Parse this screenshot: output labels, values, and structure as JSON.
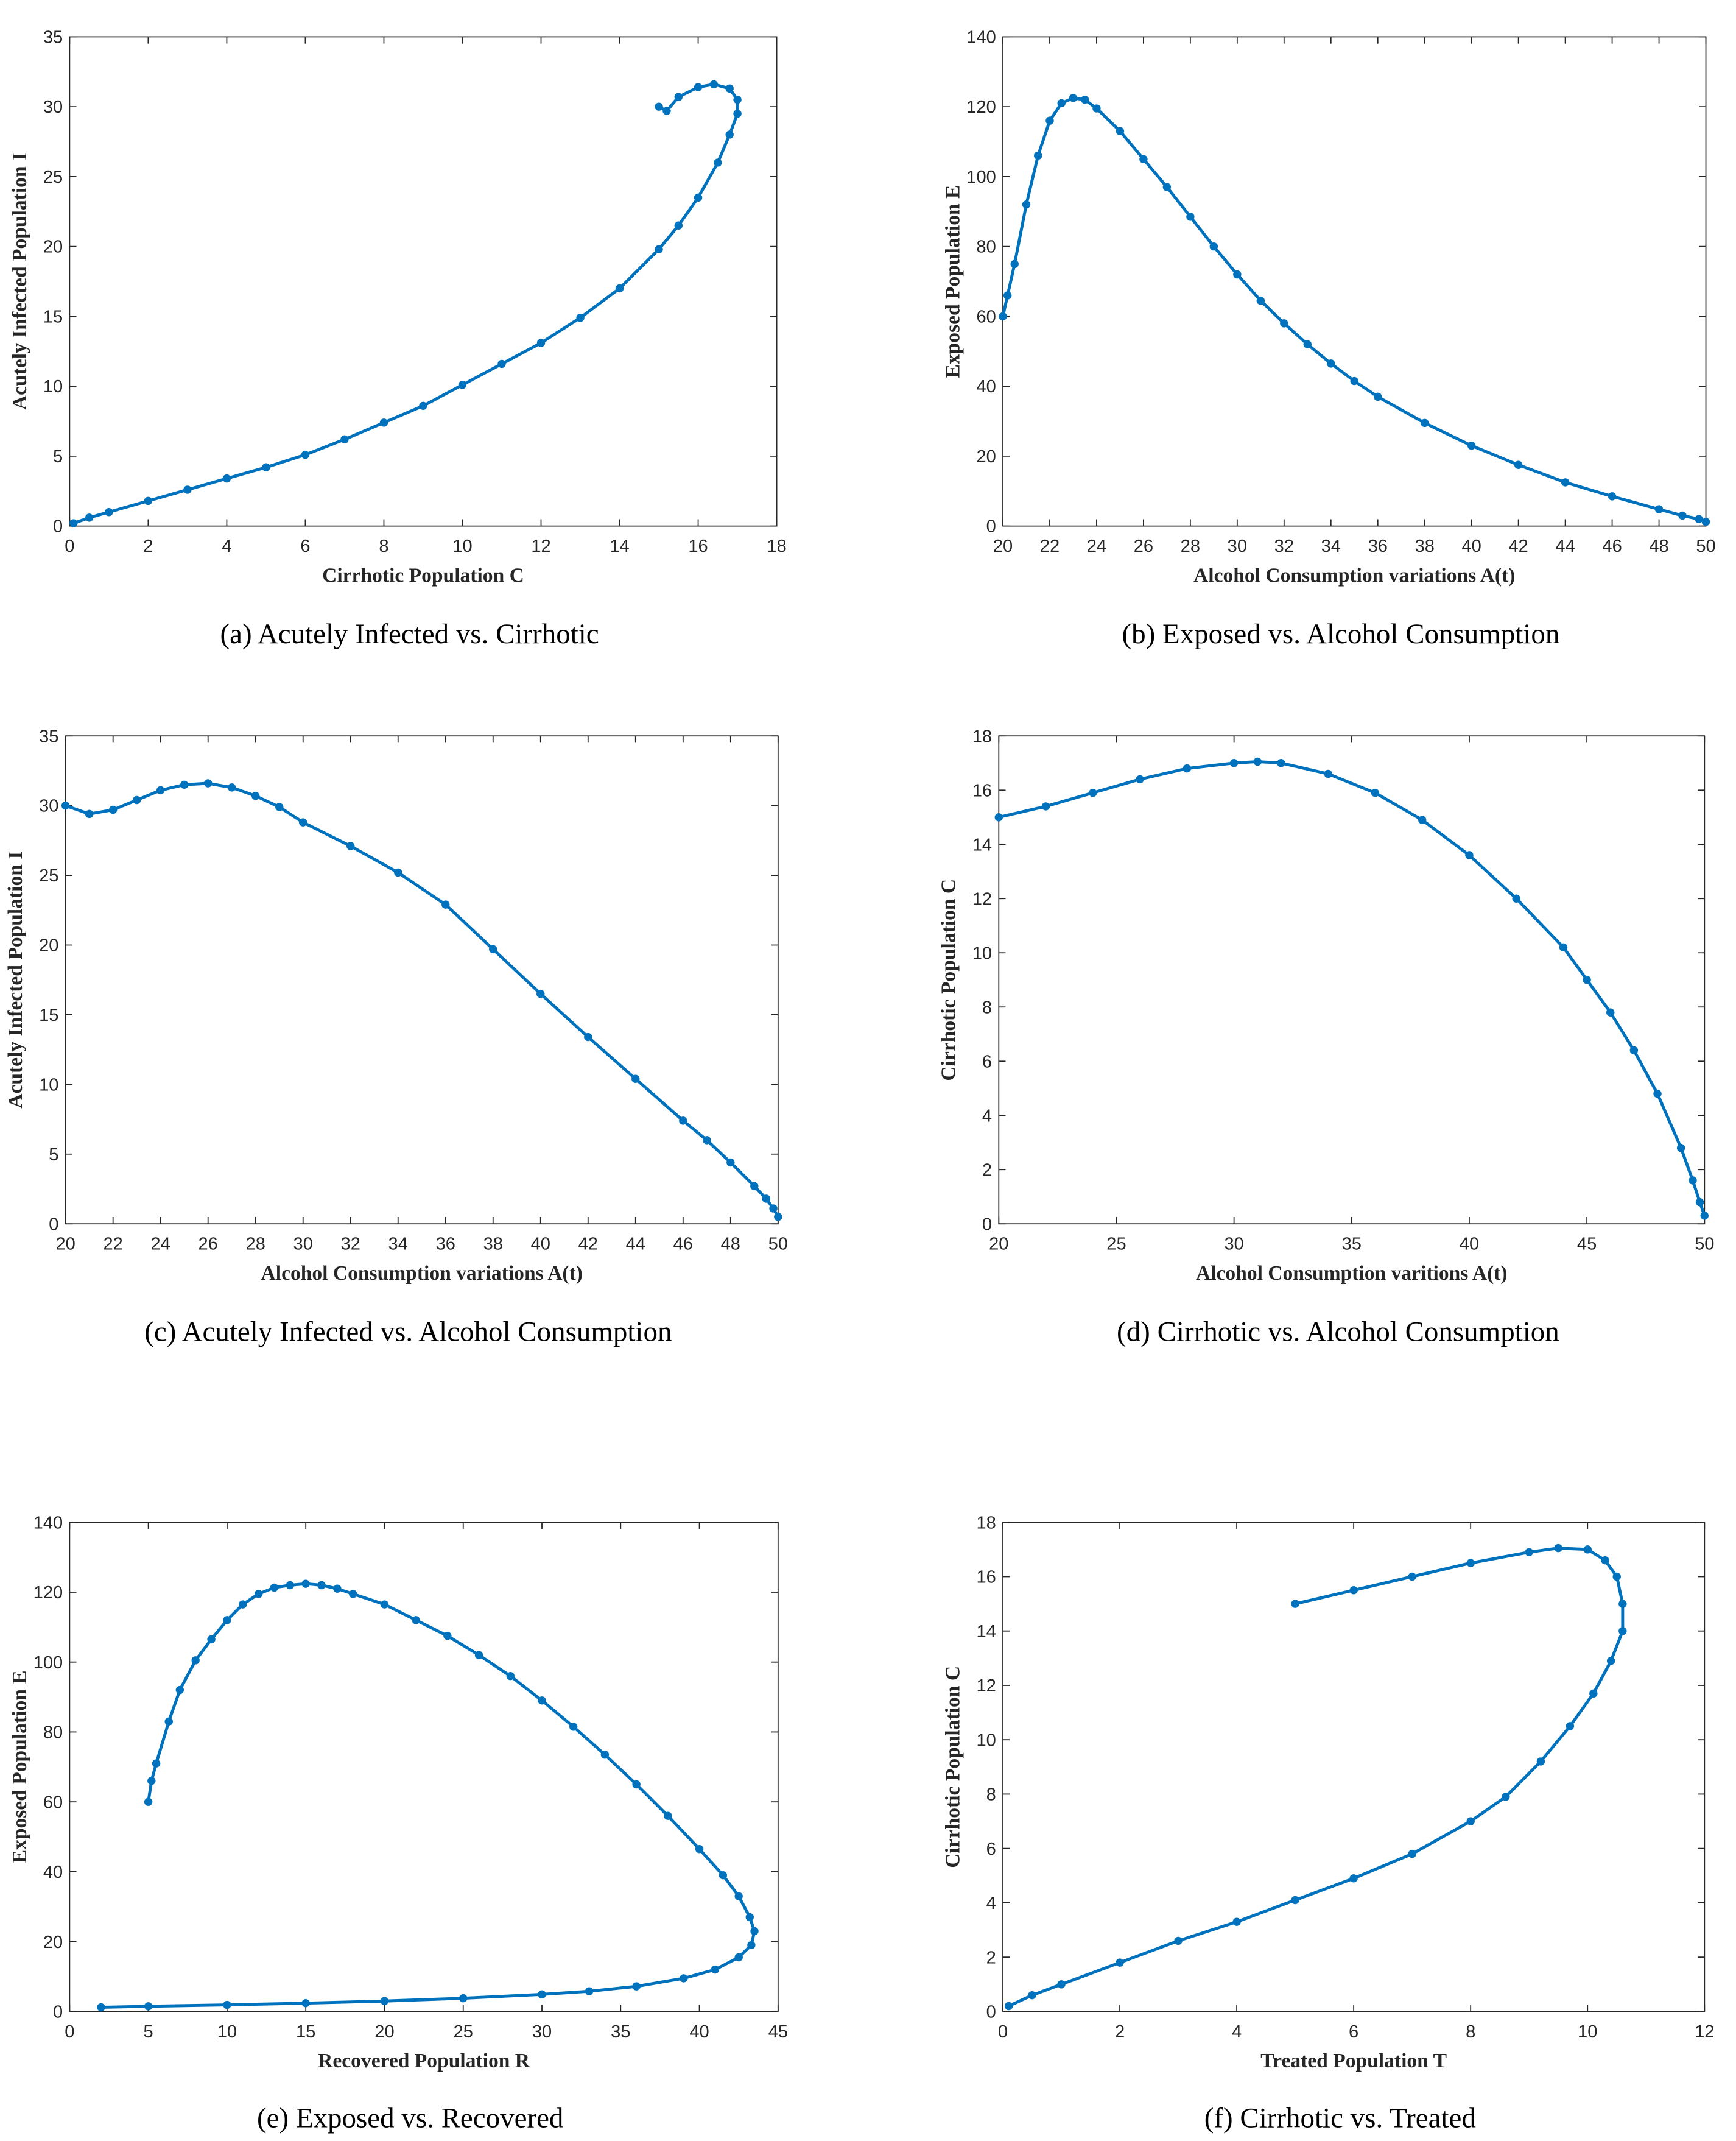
{
  "chart_data": [
    {
      "type": "line",
      "caption": "(a) Acutely Infected vs. Cirrhotic",
      "x_label": "Cirrhotic Population C",
      "y_label": "Acutely Infected Population I",
      "color": "#0072bd",
      "x": [
        15,
        15.2,
        15.5,
        16,
        16.4,
        16.8,
        17,
        17,
        16.8,
        16.5,
        16,
        15.5,
        15,
        14,
        13,
        12,
        11,
        10,
        9,
        8,
        7,
        6,
        5,
        4,
        3,
        2,
        1,
        0.5,
        0.1
      ],
      "values": [
        30,
        29.7,
        30.7,
        31.4,
        31.6,
        31.3,
        30.5,
        29.5,
        28,
        26,
        23.5,
        21.5,
        19.8,
        17,
        14.9,
        13.1,
        11.6,
        10.1,
        8.6,
        7.4,
        6.2,
        5.1,
        4.2,
        3.4,
        2.6,
        1.8,
        1,
        0.6,
        0.2
      ],
      "xlim": [
        0,
        18
      ],
      "xticks": [
        0,
        2,
        4,
        6,
        8,
        10,
        12,
        14,
        16,
        18
      ],
      "ylim": [
        0,
        35
      ],
      "yticks": [
        0,
        5,
        10,
        15,
        20,
        25,
        30,
        35
      ]
    },
    {
      "type": "line",
      "caption": "(b) Exposed vs. Alcohol Consumption",
      "x_label": "Alcohol Consumption variations A(t)",
      "y_label": "Exposed Population E",
      "color": "#0072bd",
      "x": [
        20,
        20.2,
        20.5,
        21,
        21.5,
        22,
        22.5,
        23,
        23.5,
        24,
        25,
        26,
        27,
        28,
        29,
        30,
        31,
        32,
        33,
        34,
        35,
        36,
        38,
        40,
        42,
        44,
        46,
        48,
        49,
        49.7,
        50
      ],
      "values": [
        60,
        66,
        75,
        92,
        106,
        116,
        121,
        122.5,
        122,
        119.5,
        113,
        105,
        97,
        88.5,
        80,
        72,
        64.5,
        58,
        52,
        46.5,
        41.5,
        37,
        29.5,
        23,
        17.5,
        12.5,
        8.5,
        4.8,
        3,
        2,
        1.2
      ],
      "xlim": [
        20,
        50
      ],
      "xticks": [
        20,
        22,
        24,
        26,
        28,
        30,
        32,
        34,
        36,
        38,
        40,
        42,
        44,
        46,
        48,
        50
      ],
      "ylim": [
        0,
        140
      ],
      "yticks": [
        0,
        20,
        40,
        60,
        80,
        100,
        120,
        140
      ]
    },
    {
      "type": "line",
      "caption": "(c) Acutely Infected vs. Alcohol Consumption",
      "x_label": "Alcohol Consumption variations A(t)",
      "y_label": "Acutely Infected Population I",
      "color": "#0072bd",
      "x": [
        20,
        21,
        22,
        23,
        24,
        25,
        26,
        27,
        28,
        29,
        30,
        32,
        34,
        36,
        38,
        40,
        42,
        44,
        46,
        47,
        48,
        49,
        49.5,
        49.8,
        50
      ],
      "values": [
        30,
        29.4,
        29.7,
        30.4,
        31.1,
        31.5,
        31.6,
        31.3,
        30.7,
        29.9,
        28.8,
        27.1,
        25.2,
        22.9,
        19.7,
        16.5,
        13.4,
        10.4,
        7.4,
        6,
        4.4,
        2.7,
        1.8,
        1.1,
        0.5
      ],
      "xlim": [
        20,
        50
      ],
      "xticks": [
        20,
        22,
        24,
        26,
        28,
        30,
        32,
        34,
        36,
        38,
        40,
        42,
        44,
        46,
        48,
        50
      ],
      "ylim": [
        0,
        35
      ],
      "yticks": [
        0,
        5,
        10,
        15,
        20,
        25,
        30,
        35
      ]
    },
    {
      "type": "line",
      "caption": "(d) Cirrhotic vs. Alcohol Consumption",
      "x_label": "Alcohol Consumption varitions A(t)",
      "y_label": "Cirrhotic Population C",
      "color": "#0072bd",
      "x": [
        20,
        22,
        24,
        26,
        28,
        30,
        31,
        32,
        34,
        36,
        38,
        40,
        42,
        44,
        45,
        46,
        47,
        48,
        49,
        49.5,
        49.8,
        50
      ],
      "values": [
        15,
        15.4,
        15.9,
        16.4,
        16.8,
        17,
        17.05,
        17,
        16.6,
        15.9,
        14.9,
        13.6,
        12,
        10.2,
        9,
        7.8,
        6.4,
        4.8,
        2.8,
        1.6,
        0.8,
        0.3
      ],
      "xlim": [
        20,
        50
      ],
      "xticks": [
        20,
        25,
        30,
        35,
        40,
        45,
        50
      ],
      "ylim": [
        0,
        18
      ],
      "yticks": [
        0,
        2,
        4,
        6,
        8,
        10,
        12,
        14,
        16,
        18
      ]
    },
    {
      "type": "line",
      "caption": "(e) Exposed vs. Recovered",
      "x_label": "Recovered Population R",
      "y_label": "Exposed Population E",
      "color": "#0072bd",
      "x": [
        5,
        5.2,
        5.5,
        6.3,
        7,
        8,
        9,
        10,
        11,
        12,
        13,
        14,
        15,
        16,
        17,
        18,
        20,
        22,
        24,
        26,
        28,
        30,
        32,
        34,
        36,
        38,
        40,
        41.5,
        42.5,
        43.2,
        43.5,
        43.3,
        42.5,
        41,
        39,
        36,
        33,
        30,
        25,
        20,
        15,
        10,
        5,
        2
      ],
      "values": [
        60,
        66,
        71,
        83,
        92,
        100.5,
        106.5,
        112,
        116.5,
        119.5,
        121.3,
        122,
        122.4,
        122,
        121,
        119.5,
        116.5,
        112,
        107.5,
        102,
        96,
        89,
        81.5,
        73.5,
        65,
        56,
        46.5,
        39,
        33,
        27,
        23,
        19,
        15.5,
        12,
        9.5,
        7.2,
        5.8,
        4.9,
        3.8,
        3,
        2.4,
        1.9,
        1.5,
        1.2
      ],
      "xlim": [
        0,
        45
      ],
      "xticks": [
        0,
        5,
        10,
        15,
        20,
        25,
        30,
        35,
        40,
        45
      ],
      "ylim": [
        0,
        140
      ],
      "yticks": [
        0,
        20,
        40,
        60,
        80,
        100,
        120,
        140
      ]
    },
    {
      "type": "line",
      "caption": "(f) Cirrhotic vs. Treated",
      "x_label": "Treated Population T",
      "y_label": "Cirrhotic Population C",
      "color": "#0072bd",
      "x": [
        5,
        6,
        7,
        8,
        9,
        9.5,
        10,
        10.3,
        10.5,
        10.6,
        10.6,
        10.4,
        10.1,
        9.7,
        9.2,
        8.6,
        8,
        7,
        6,
        5,
        4,
        3,
        2,
        1,
        0.5,
        0.1
      ],
      "values": [
        15,
        15.5,
        16,
        16.5,
        16.9,
        17.05,
        17,
        16.6,
        16,
        15,
        14,
        12.9,
        11.7,
        10.5,
        9.2,
        7.9,
        7,
        5.8,
        4.9,
        4.1,
        3.3,
        2.6,
        1.8,
        1,
        0.6,
        0.2
      ],
      "xlim": [
        0,
        12
      ],
      "xticks": [
        0,
        2,
        4,
        6,
        8,
        10,
        12
      ],
      "ylim": [
        0,
        18
      ],
      "yticks": [
        0,
        2,
        4,
        6,
        8,
        10,
        12,
        14,
        16,
        18
      ]
    }
  ]
}
